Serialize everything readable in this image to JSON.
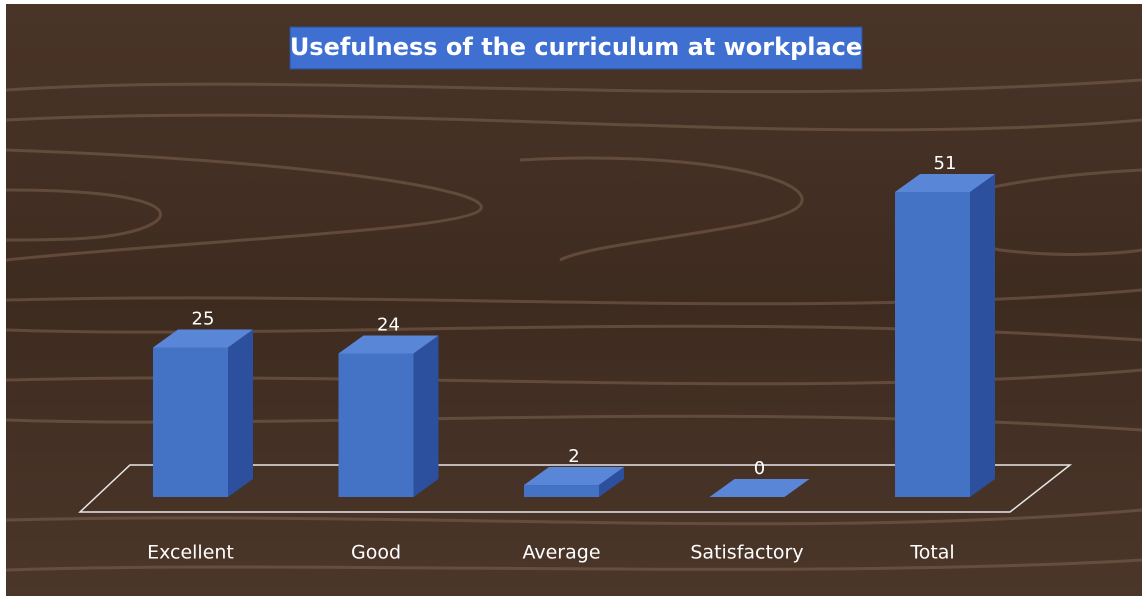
{
  "chart_data": {
    "type": "bar",
    "title": "Usefulness of the curriculum at workplace",
    "categories": [
      "Excellent",
      "Good",
      "Average",
      "Satisfactory",
      "Total"
    ],
    "values": [
      25,
      24,
      2,
      0,
      51
    ],
    "color": "#4472c4"
  }
}
